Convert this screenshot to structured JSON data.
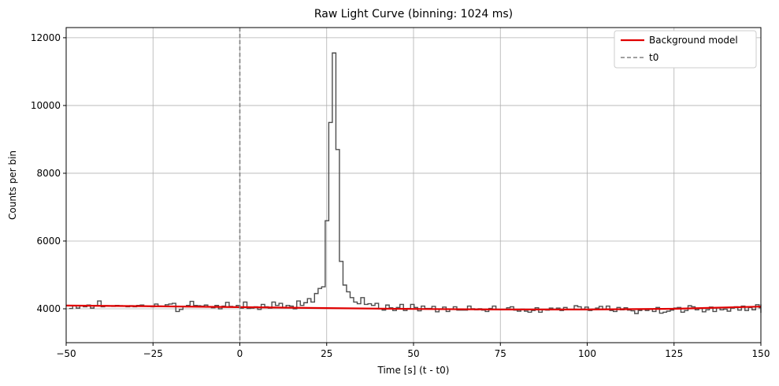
{
  "chart_data": {
    "type": "line",
    "title": "Raw Light Curve (binning: 1024 ms)",
    "xlabel": "Time [s] (t - t0)",
    "ylabel": "Counts per bin",
    "xlim": [
      -50,
      150
    ],
    "ylim": [
      3000,
      12300
    ],
    "xticks": [
      -50,
      -25,
      0,
      25,
      50,
      75,
      100,
      125,
      150
    ],
    "yticks": [
      4000,
      6000,
      8000,
      10000,
      12000
    ],
    "grid": true,
    "legend_position": "top-right",
    "colors": {
      "histogram": "#4d4d4d",
      "background": "#e00000",
      "t0": "#808080",
      "grid": "#b0b0b0"
    },
    "legend": [
      "Background model",
      "t0"
    ],
    "series": [
      {
        "name": "Light curve",
        "style": "step",
        "bin_width": 1.024,
        "x_start": -49.152,
        "values": [
          4010,
          4090,
          4020,
          4100,
          4060,
          4110,
          4020,
          4100,
          4230,
          4060,
          4090,
          4080,
          4070,
          4100,
          4090,
          4080,
          4060,
          4090,
          4060,
          4100,
          4110,
          4080,
          4070,
          4060,
          4140,
          4080,
          4070,
          4120,
          4140,
          4160,
          3920,
          3980,
          4070,
          4100,
          4220,
          4100,
          4090,
          4080,
          4110,
          4060,
          4030,
          4100,
          4000,
          4080,
          4190,
          4070,
          4050,
          4100,
          4020,
          4200,
          4010,
          4020,
          4060,
          3980,
          4130,
          4060,
          4020,
          4200,
          4100,
          4160,
          4030,
          4100,
          4080,
          4000,
          4230,
          4100,
          4180,
          4300,
          4200,
          4450,
          4600,
          4650,
          6600,
          9500,
          11550,
          8700,
          5400,
          4700,
          4500,
          4330,
          4200,
          4150,
          4330,
          4130,
          4150,
          4100,
          4160,
          4000,
          3960,
          4110,
          4030,
          3950,
          4040,
          4130,
          3950,
          4010,
          4130,
          4040,
          3940,
          4080,
          4010,
          4010,
          4070,
          3910,
          3990,
          4050,
          3920,
          3990,
          4060,
          3960,
          3960,
          3960,
          4080,
          4000,
          3970,
          4000,
          3960,
          3920,
          4010,
          4080,
          3980,
          3980,
          3980,
          4030,
          4060,
          3960,
          3930,
          3990,
          3930,
          3900,
          3950,
          4030,
          3900,
          3970,
          3960,
          4020,
          3970,
          4020,
          3950,
          4040,
          3970,
          3980,
          4090,
          4060,
          3990,
          4050,
          3950,
          3990,
          4020,
          4070,
          3980,
          4080,
          3950,
          3920,
          4040,
          3970,
          4030,
          3960,
          3940,
          3860,
          3950,
          3990,
          3950,
          3980,
          3920,
          4040,
          3870,
          3900,
          3930,
          3960,
          4020,
          4040,
          3900,
          3950,
          4090,
          4060,
          3970,
          4010,
          3910,
          3970,
          4050,
          3920,
          4040,
          3970,
          3990,
          3930,
          4020,
          4060,
          3960,
          4080,
          3950,
          4040,
          3970,
          4120,
          4030,
          4000,
          3990,
          4020,
          3990,
          4020,
          3990,
          4050,
          4040,
          4100,
          4130,
          3880,
          4030,
          4020,
          3990,
          4040,
          4050,
          4090,
          4050
        ]
      },
      {
        "name": "Background model",
        "style": "line",
        "x": [
          -50,
          -25,
          0,
          25,
          50,
          75,
          100,
          125,
          150
        ],
        "values": [
          4095,
          4075,
          4050,
          4020,
          3995,
          3980,
          3980,
          4000,
          4065
        ]
      }
    ],
    "vline": {
      "name": "t0",
      "x": 0
    }
  }
}
